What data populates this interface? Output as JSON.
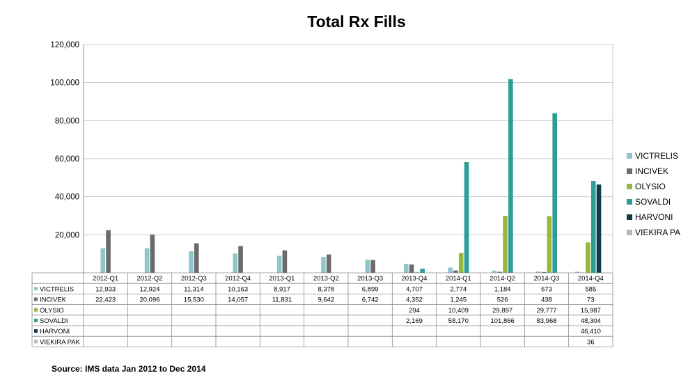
{
  "title": "Total Rx Fills",
  "source": "Source: IMS data Jan 2012 to Dec 2014",
  "chart_data": {
    "type": "bar",
    "title": "Total Rx Fills",
    "categories": [
      "2012-Q1",
      "2012-Q2",
      "2012-Q3",
      "2012-Q4",
      "2013-Q1",
      "2013-Q2",
      "2013-Q3",
      "2013-Q4",
      "2014-Q1",
      "2014-Q2",
      "2014-Q3",
      "2014-Q4"
    ],
    "ylim": [
      0,
      120000
    ],
    "yticks": [
      0,
      20000,
      40000,
      60000,
      80000,
      100000,
      120000
    ],
    "ytick_labels": [
      "",
      "20,000",
      "40,000",
      "60,000",
      "80,000",
      "100,000",
      "120,000"
    ],
    "grid": true,
    "legend_position": "right",
    "data_table": true,
    "series": [
      {
        "name": "VICTRELIS",
        "color": "#8fc6cc",
        "values": [
          12933,
          12924,
          11314,
          10163,
          8917,
          8378,
          6899,
          4707,
          2774,
          1184,
          673,
          585
        ],
        "labels": [
          "12,933",
          "12,924",
          "11,314",
          "10,163",
          "8,917",
          "8,378",
          "6,899",
          "4,707",
          "2,774",
          "1,184",
          "673",
          "585"
        ]
      },
      {
        "name": "INCIVEK",
        "color": "#6b6b6b",
        "values": [
          22423,
          20096,
          15530,
          14057,
          11831,
          9642,
          6742,
          4352,
          1245,
          526,
          438,
          73
        ],
        "labels": [
          "22,423",
          "20,096",
          "15,530",
          "14,057",
          "11,831",
          "9,642",
          "6,742",
          "4,352",
          "1,245",
          "526",
          "438",
          "73"
        ]
      },
      {
        "name": "OLYSIO",
        "color": "#96b83c",
        "values": [
          null,
          null,
          null,
          null,
          null,
          null,
          null,
          294,
          10409,
          29897,
          29777,
          15987
        ],
        "labels": [
          "",
          "",
          "",
          "",
          "",
          "",
          "",
          "294",
          "10,409",
          "29,897",
          "29,777",
          "15,987"
        ]
      },
      {
        "name": "SOVALDI",
        "color": "#2e9e96",
        "values": [
          null,
          null,
          null,
          null,
          null,
          null,
          null,
          2169,
          58170,
          101866,
          83968,
          48304
        ],
        "labels": [
          "",
          "",
          "",
          "",
          "",
          "",
          "",
          "2,169",
          "58,170",
          "101,866",
          "83,968",
          "48,304"
        ]
      },
      {
        "name": "HARVONI",
        "color": "#0f3c4a",
        "values": [
          null,
          null,
          null,
          null,
          null,
          null,
          null,
          null,
          null,
          null,
          null,
          46410
        ],
        "labels": [
          "",
          "",
          "",
          "",
          "",
          "",
          "",
          "",
          "",
          "",
          "",
          "46,410"
        ]
      },
      {
        "name": "VIEKIRA PAK",
        "color": "#b7b7b7",
        "values": [
          null,
          null,
          null,
          null,
          null,
          null,
          null,
          null,
          null,
          null,
          null,
          36
        ],
        "labels": [
          "",
          "",
          "",
          "",
          "",
          "",
          "",
          "",
          "",
          "",
          "",
          "36"
        ]
      }
    ]
  }
}
